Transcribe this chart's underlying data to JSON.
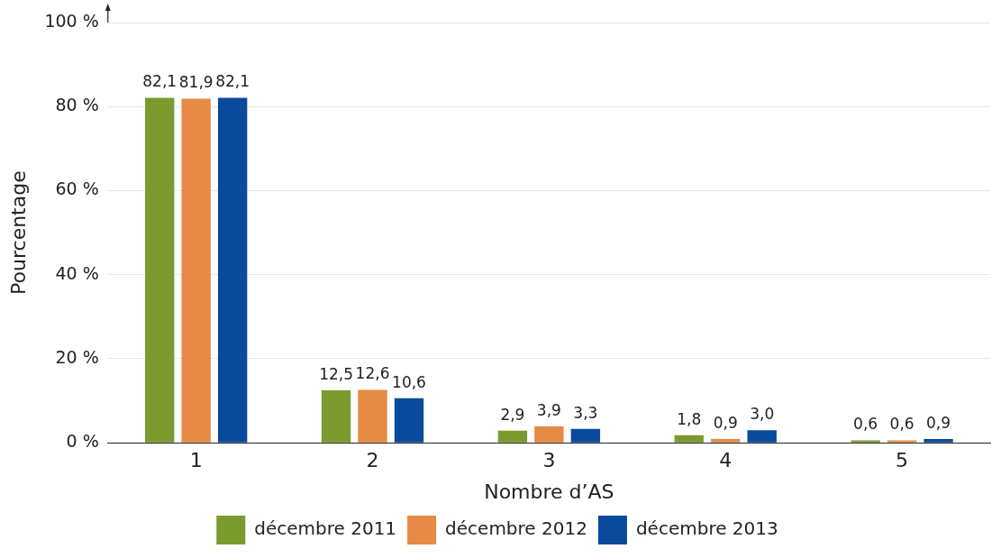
{
  "chart_data": {
    "type": "bar",
    "xlabel": "Nombre d’AS",
    "ylabel": "Pourcentage",
    "categories": [
      "1",
      "2",
      "3",
      "4",
      "5"
    ],
    "series": [
      {
        "name": "décembre 2011",
        "color": "#7a9a2e",
        "values": [
          82.1,
          12.5,
          2.9,
          1.8,
          0.6
        ],
        "value_labels": [
          "82,1",
          "12,5",
          "2,9",
          "1,8",
          "0,6"
        ]
      },
      {
        "name": "décembre 2012",
        "color": "#e68a45",
        "values": [
          81.9,
          12.6,
          3.9,
          0.9,
          0.6
        ],
        "value_labels": [
          "81,9",
          "12,6",
          "3,9",
          "0,9",
          "0,6"
        ]
      },
      {
        "name": "décembre 2013",
        "color": "#0a4a9a",
        "values": [
          82.1,
          10.6,
          3.3,
          3.0,
          0.9
        ],
        "value_labels": [
          "82,1",
          "10,6",
          "3,3",
          "3,0",
          "0,9"
        ]
      }
    ],
    "ylim": [
      0,
      100
    ],
    "yticks": [
      {
        "value": 0,
        "label": "0 %"
      },
      {
        "value": 20,
        "label": "20 %"
      },
      {
        "value": 40,
        "label": "40 %"
      },
      {
        "value": 60,
        "label": "60 %"
      },
      {
        "value": 80,
        "label": "80 %"
      },
      {
        "value": 100,
        "label": "100 %"
      }
    ],
    "grid": "y",
    "legend": "bottom"
  }
}
